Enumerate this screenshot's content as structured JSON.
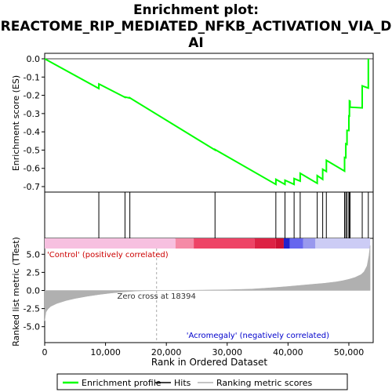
{
  "chart_data": {
    "type": "line",
    "title_lines": [
      "Enrichment plot:",
      "REACTOME_RIP_MEDIATED_NFKB_ACTIVATION_VIA_D",
      "AI"
    ],
    "xlabel": "Rank in Ordered Dataset",
    "xlim": [
      0,
      54000
    ],
    "x_ticks": [
      0,
      10000,
      20000,
      30000,
      40000,
      50000
    ],
    "x_tick_labels": [
      "0",
      "10,000",
      "20,000",
      "30,000",
      "40,000",
      "50,000"
    ],
    "es_panel": {
      "ylabel": "Enrichment score (ES)",
      "ylim": [
        -0.73,
        0.03
      ],
      "y_ticks": [
        0.0,
        -0.1,
        -0.2,
        -0.3,
        -0.4,
        -0.5,
        -0.6,
        -0.7
      ],
      "y_tick_labels": [
        "0.0",
        "-0.1",
        "-0.2",
        "-0.3",
        "-0.4",
        "-0.5",
        "-0.6",
        "-0.7"
      ],
      "series": [
        {
          "name": "Enrichment profile",
          "color": "#00ff00",
          "x": [
            0,
            8900,
            8901,
            13200,
            13201,
            14000,
            14001,
            28000,
            28001,
            38000,
            38001,
            39500,
            39501,
            41000,
            41001,
            42000,
            42001,
            44800,
            44801,
            45700,
            45701,
            46300,
            46301,
            49300,
            49301,
            49500,
            49501,
            49700,
            49701,
            50000,
            50001,
            50100,
            50101,
            50200,
            50201,
            52200,
            52201,
            53200,
            53201
          ],
          "values": [
            0.0,
            -0.163,
            -0.138,
            -0.211,
            -0.209,
            -0.215,
            -0.214,
            -0.5,
            -0.497,
            -0.688,
            -0.66,
            -0.688,
            -0.665,
            -0.688,
            -0.656,
            -0.67,
            -0.627,
            -0.682,
            -0.64,
            -0.66,
            -0.605,
            -0.617,
            -0.556,
            -0.615,
            -0.54,
            -0.542,
            -0.466,
            -0.469,
            -0.392,
            -0.393,
            -0.313,
            -0.314,
            -0.23,
            -0.232,
            -0.265,
            -0.269,
            -0.148,
            -0.16,
            0.0
          ]
        }
      ]
    },
    "hits": {
      "name": "Hits",
      "color": "#000000",
      "x": [
        8900,
        13200,
        14000,
        28000,
        38000,
        39500,
        41000,
        42000,
        44800,
        45700,
        46300,
        49300,
        49500,
        49700,
        50000,
        50100,
        50200,
        52200,
        53200
      ]
    },
    "ranked_panel": {
      "ylabel": "Ranked list metric (TTest)",
      "ylim": [
        -7.2,
        7.2
      ],
      "y_ticks": [
        5.0,
        2.5,
        0.0,
        -2.5,
        -5.0
      ],
      "y_tick_labels": [
        "5.0",
        "2.5",
        "0.0",
        "-2.5",
        "-5.0"
      ],
      "series_name": "Ranking metric scores",
      "fill_color": "#b0b0b0",
      "profile_x": [
        0,
        200,
        500,
        1000,
        2000,
        3500,
        5000,
        7000,
        9000,
        11000,
        13000,
        15000,
        17000,
        18394,
        22000,
        26000,
        30000,
        34000,
        36000,
        38000,
        40000,
        42000,
        44000,
        46000,
        48000,
        49000,
        50000,
        51000,
        52000,
        52500,
        53000,
        53300,
        53500
      ],
      "profile_y": [
        -4.2,
        -3.0,
        -2.6,
        -2.2,
        -1.8,
        -1.4,
        -1.1,
        -0.8,
        -0.55,
        -0.35,
        -0.2,
        -0.08,
        -0.02,
        0.0,
        0.02,
        0.05,
        0.1,
        0.2,
        0.3,
        0.42,
        0.55,
        0.7,
        0.85,
        1.0,
        1.2,
        1.35,
        1.55,
        1.8,
        2.2,
        2.6,
        3.4,
        4.8,
        6.2
      ],
      "labels": {
        "positive": "'Control' (positively correlated)",
        "negative": "'Acromegaly' (negatively correlated)",
        "zero_cross": "Zero cross at 18394"
      },
      "zero_cross_x": 18394
    },
    "color_bar": {
      "segments": [
        {
          "x0": 0,
          "x1": 21500,
          "color": "#f7c0e0"
        },
        {
          "x0": 21500,
          "x1": 24500,
          "color": "#f58aa6"
        },
        {
          "x0": 24500,
          "x1": 34500,
          "color": "#ee4466"
        },
        {
          "x0": 34500,
          "x1": 38000,
          "color": "#dd2244"
        },
        {
          "x0": 38000,
          "x1": 39300,
          "color": "#cc1133"
        },
        {
          "x0": 39300,
          "x1": 40300,
          "color": "#2222cc"
        },
        {
          "x0": 40300,
          "x1": 42500,
          "color": "#6666ee"
        },
        {
          "x0": 42500,
          "x1": 44500,
          "color": "#9999ee"
        },
        {
          "x0": 44500,
          "x1": 53500,
          "color": "#ccccf5"
        }
      ]
    },
    "legend": {
      "placement": "bottom",
      "items": [
        {
          "label": "Enrichment profile",
          "color": "#00ff00",
          "kind": "line"
        },
        {
          "label": "Hits",
          "color": "#000000",
          "kind": "line"
        },
        {
          "label": "Ranking metric scores",
          "color": "#b0b0b0",
          "kind": "line"
        }
      ]
    }
  }
}
